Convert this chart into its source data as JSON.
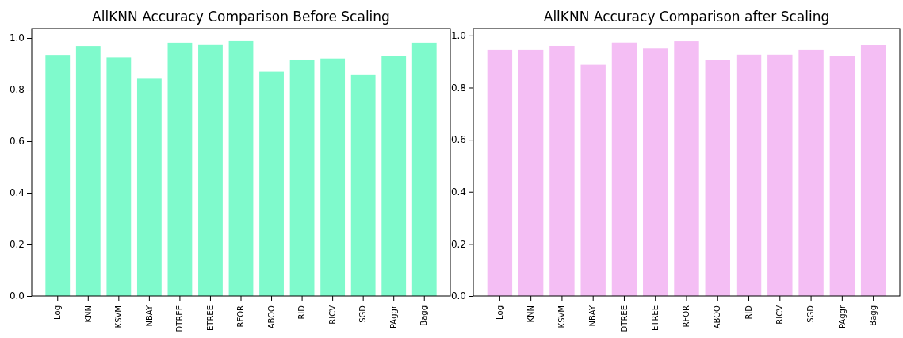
{
  "chart_data": [
    {
      "type": "bar",
      "title": "AllKNN Accuracy Comparison Before Scaling",
      "categories": [
        "Log",
        "KNN",
        "KSVM",
        "NBAY",
        "DTREE",
        "ETREE",
        "RFOR",
        "ABOO",
        "RID",
        "RICV",
        "SGD",
        "PAggr",
        "Bagg"
      ],
      "values": [
        0.935,
        0.969,
        0.925,
        0.845,
        0.982,
        0.973,
        0.988,
        0.869,
        0.917,
        0.921,
        0.859,
        0.931,
        0.982
      ],
      "color": "#7ffacc",
      "ylim": [
        0,
        1.037
      ],
      "yticks": [
        {
          "value": 0,
          "label": "0.0"
        },
        {
          "value": 0.2,
          "label": "0.2"
        },
        {
          "value": 0.4,
          "label": "0.4"
        },
        {
          "value": 0.6,
          "label": "0.6"
        },
        {
          "value": 0.8,
          "label": "0.8"
        },
        {
          "value": 1,
          "label": "1.0"
        }
      ],
      "grid": false
    },
    {
      "type": "bar",
      "title": "AllKNN Accuracy Comparison after Scaling",
      "categories": [
        "Log",
        "KNN",
        "KSVM",
        "NBAY",
        "DTREE",
        "ETREE",
        "RFOR",
        "ABOO",
        "RID",
        "RICV",
        "SGD",
        "PAggr",
        "Bagg"
      ],
      "values": [
        0.945,
        0.945,
        0.96,
        0.888,
        0.973,
        0.95,
        0.978,
        0.907,
        0.927,
        0.927,
        0.945,
        0.922,
        0.963
      ],
      "color": "#f4bef4",
      "ylim": [
        0,
        1.027
      ],
      "yticks": [
        {
          "value": 0,
          "label": "0.0"
        },
        {
          "value": 0.2,
          "label": "0.2"
        },
        {
          "value": 0.4,
          "label": "0.4"
        },
        {
          "value": 0.6,
          "label": "0.6"
        },
        {
          "value": 0.8,
          "label": "0.8"
        },
        {
          "value": 1,
          "label": "1.0"
        }
      ],
      "grid": false
    }
  ]
}
